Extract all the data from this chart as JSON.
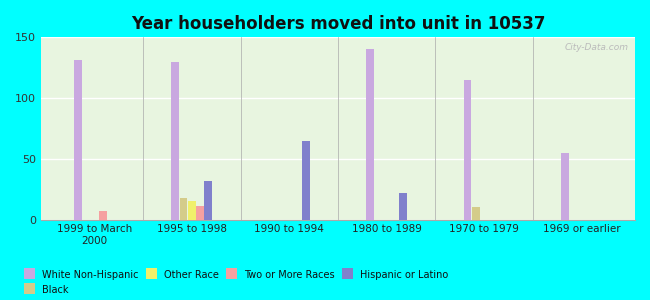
{
  "title": "Year householders moved into unit in 10537",
  "background_color": "#00FFFF",
  "categories": [
    "1999 to March\n2000",
    "1995 to 1998",
    "1990 to 1994",
    "1980 to 1989",
    "1970 to 1979",
    "1969 or earlier"
  ],
  "series": {
    "White Non-Hispanic": {
      "values": [
        131,
        130,
        0,
        140,
        115,
        55
      ],
      "color": "#c9a8e0"
    },
    "Black": {
      "values": [
        0,
        18,
        0,
        0,
        10,
        0
      ],
      "color": "#d4cc8a"
    },
    "Other Race": {
      "values": [
        0,
        15,
        0,
        0,
        0,
        0
      ],
      "color": "#f0f06a"
    },
    "Two or More Races": {
      "values": [
        7,
        11,
        0,
        0,
        0,
        0
      ],
      "color": "#f5a0a0"
    },
    "Hispanic or Latino": {
      "values": [
        0,
        32,
        65,
        22,
        0,
        0
      ],
      "color": "#8080cc"
    }
  },
  "ylim": [
    0,
    150
  ],
  "yticks": [
    0,
    50,
    100,
    150
  ],
  "watermark": "City-Data.com",
  "legend_order": [
    "White Non-Hispanic",
    "Black",
    "Other Race",
    "Two or More Races",
    "Hispanic or Latino"
  ]
}
